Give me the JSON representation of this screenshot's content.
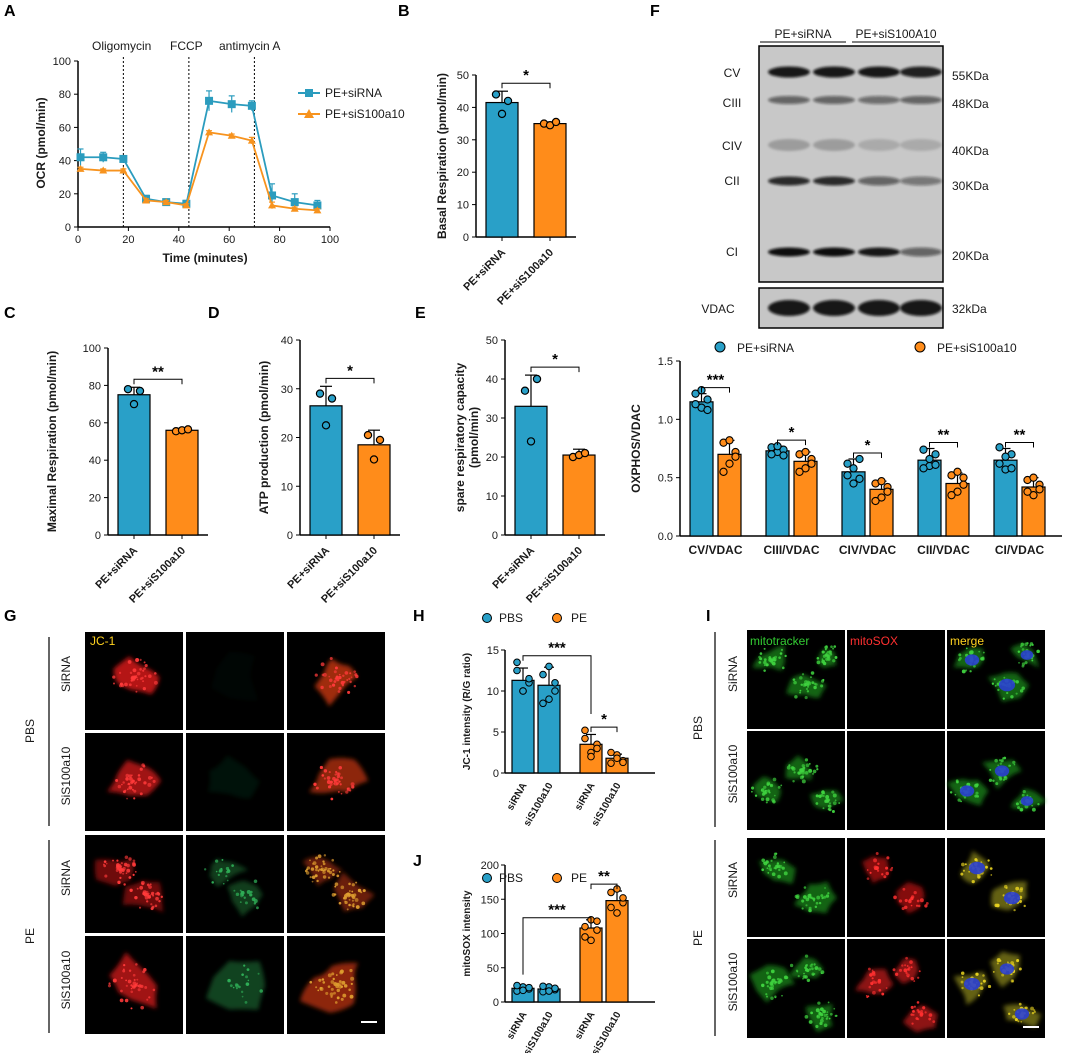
{
  "panels": {
    "A": "A",
    "B": "B",
    "C": "C",
    "D": "D",
    "E": "E",
    "F": "F",
    "G": "G",
    "H": "H",
    "I": "I",
    "J": "J"
  },
  "colors": {
    "sirna": "#2b9cbe",
    "si": "#f7931e",
    "bar_blue": "#29a0c8",
    "bar_orange": "#ff8c1a",
    "red": "#d42020",
    "green": "#2ca02c",
    "yellow": "#ffd700"
  },
  "groups": {
    "ctrl": "PE+siRNA",
    "treat": "PE+siS100a10",
    "treat_line": "PE+siS100a10"
  },
  "panel_a": {
    "inj": [
      "Oligomycin",
      "FCCP",
      "antimycin A"
    ],
    "legend": [
      "PE+siRNA",
      "PE+siS100a10"
    ]
  },
  "panel_b": {
    "ylabel": "Basal Respiration (pmol/min)",
    "sig": "*"
  },
  "panel_c": {
    "ylabel": "Maximal Respiration (pmol/min)",
    "sig": "**"
  },
  "panel_d": {
    "ylabel": "ATP production (pmol/min)",
    "sig": "*"
  },
  "panel_e": {
    "ylabel1": "spare respiratory capacity",
    "ylabel2": "(pmol/min)",
    "sig": "*"
  },
  "panel_f": {
    "groups": [
      "PE+siRNA",
      "PE+siS100A10"
    ],
    "bands": [
      "CV",
      "CIII",
      "CIV",
      "CII",
      "CI"
    ],
    "markers": [
      "55KDa",
      "48KDa",
      "40KDa",
      "30KDa",
      "20KDa"
    ],
    "vdac": "VDAC",
    "vdac_marker": "32kDa"
  },
  "panel_g": {
    "stain": "JC-1",
    "rows": [
      "SiRNA",
      "SiS100a10",
      "SiRNA",
      "SiS100a10"
    ],
    "groups": [
      "PBS",
      "PE"
    ]
  },
  "panel_h": {
    "legend": [
      "PBS",
      "PE"
    ],
    "ylabel": "JC-1 intensity (R/G ratio)",
    "sig": [
      "***",
      "*"
    ],
    "cats": [
      "siRNA",
      "siS100a10",
      "siRNA",
      "siS100a10"
    ]
  },
  "panel_i": {
    "stains": [
      "mitotracker",
      "mitoSOX",
      "merge"
    ],
    "rows": [
      "SiRNA",
      "SiS100a10",
      "SiRNA",
      "SiS100a10"
    ],
    "groups": [
      "PBS",
      "PE"
    ]
  },
  "panel_j": {
    "legend": [
      "PBS",
      "PE"
    ],
    "ylabel": "mitoSOX intensity",
    "sig": [
      "***",
      "**"
    ],
    "cats": [
      "siRNA",
      "siS100a10",
      "siRNA",
      "siS100a10"
    ]
  },
  "chart_data": [
    {
      "panel": "A",
      "type": "line",
      "xlabel": "Time (minutes)",
      "ylabel": "OCR (pmol/min)",
      "xlim": [
        0,
        100
      ],
      "ylim": [
        0,
        100
      ],
      "xticks": [
        0,
        20,
        40,
        60,
        80,
        100
      ],
      "yticks": [
        0,
        20,
        40,
        60,
        80,
        100
      ],
      "injections": [
        18,
        44,
        70
      ],
      "x": [
        1,
        10,
        18,
        27,
        35,
        43,
        52,
        61,
        69,
        77,
        86,
        95
      ],
      "series": [
        {
          "name": "PE+siRNA",
          "values": [
            42,
            42,
            41,
            17,
            15,
            14,
            76,
            74,
            73,
            19,
            15,
            13
          ],
          "err": [
            5,
            3,
            2,
            2,
            1,
            2,
            6,
            5,
            3,
            7,
            5,
            3
          ]
        },
        {
          "name": "PE+siS100a10",
          "values": [
            35,
            34,
            34,
            16,
            15,
            13,
            57,
            55,
            52,
            13,
            11,
            10
          ],
          "err": [
            1,
            1,
            1,
            1,
            1,
            1,
            1,
            1,
            2,
            2,
            1,
            1
          ]
        }
      ]
    },
    {
      "panel": "B",
      "type": "bar",
      "ylabel": "Basal Respiration (pmol/min)",
      "ylim": [
        0,
        50
      ],
      "yticks": [
        0,
        10,
        20,
        30,
        40,
        50
      ],
      "categories": [
        "PE+siRNA",
        "PE+siS100a10"
      ],
      "values": [
        41.5,
        35
      ],
      "err": [
        3.5,
        0.5
      ],
      "points": [
        [
          44,
          38,
          42
        ],
        [
          35,
          34.5,
          35.5
        ]
      ]
    },
    {
      "panel": "C",
      "type": "bar",
      "ylabel": "Maximal Respiration (pmol/min)",
      "ylim": [
        0,
        100
      ],
      "yticks": [
        0,
        20,
        40,
        60,
        80,
        100
      ],
      "categories": [
        "PE+siRNA",
        "PE+siS100a10"
      ],
      "values": [
        75,
        56
      ],
      "err": [
        4,
        1
      ],
      "points": [
        [
          78,
          70,
          77
        ],
        [
          55.5,
          56,
          56.5
        ]
      ]
    },
    {
      "panel": "D",
      "type": "bar",
      "ylabel": "ATP production (pmol/min)",
      "ylim": [
        0,
        40
      ],
      "yticks": [
        0,
        10,
        20,
        30,
        40
      ],
      "categories": [
        "PE+siRNA",
        "PE+siS100a10"
      ],
      "values": [
        26.5,
        18.5
      ],
      "err": [
        4,
        3
      ],
      "points": [
        [
          29,
          22.5,
          28
        ],
        [
          20.5,
          15.5,
          19.5
        ]
      ]
    },
    {
      "panel": "E",
      "type": "bar",
      "ylabel": "spare respiratory capacity (pmol/min)",
      "ylim": [
        0,
        50
      ],
      "yticks": [
        0,
        10,
        20,
        30,
        40,
        50
      ],
      "categories": [
        "PE+siRNA",
        "PE+siS100a10"
      ],
      "values": [
        33,
        20.5
      ],
      "err": [
        8,
        1.5
      ],
      "points": [
        [
          37,
          24,
          40
        ],
        [
          20,
          20.5,
          21
        ]
      ]
    },
    {
      "panel": "F",
      "type": "bar",
      "ylabel": "OXPHOS/VDAC",
      "ylim": [
        0,
        1.5
      ],
      "yticks": [
        0,
        0.5,
        1.0,
        1.5
      ],
      "yticklabels": [
        "0.0",
        "0.5",
        "1.0",
        "1.5"
      ],
      "legend": [
        "PE+siRNA",
        "PE+siS100a10"
      ],
      "categories": [
        "CV/VDAC",
        "CIII/VDAC",
        "CIV/VDAC",
        "CII/VDAC",
        "CI/VDAC"
      ],
      "sig": [
        "***",
        "*",
        "*",
        "**",
        "**"
      ],
      "series": [
        {
          "name": "PE+siRNA",
          "values": [
            1.15,
            0.73,
            0.55,
            0.65,
            0.65
          ],
          "err": [
            0.07,
            0.04,
            0.11,
            0.1,
            0.1
          ],
          "points": [
            [
              1.22,
              1.1,
              1.17,
              1.13,
              1.25,
              1.08
            ],
            [
              0.76,
              0.72,
              0.74,
              0.7,
              0.77,
              0.69
            ],
            [
              0.62,
              0.45,
              0.66,
              0.52,
              0.58,
              0.49
            ],
            [
              0.74,
              0.6,
              0.7,
              0.58,
              0.66,
              0.61
            ],
            [
              0.76,
              0.57,
              0.7,
              0.62,
              0.68,
              0.58
            ]
          ]
        },
        {
          "name": "PE+siS100a10",
          "values": [
            0.7,
            0.64,
            0.4,
            0.45,
            0.42
          ],
          "err": [
            0.12,
            0.08,
            0.07,
            0.09,
            0.08
          ],
          "points": [
            [
              0.8,
              0.62,
              0.72,
              0.55,
              0.82,
              0.68
            ],
            [
              0.7,
              0.58,
              0.66,
              0.55,
              0.72,
              0.62
            ],
            [
              0.45,
              0.33,
              0.42,
              0.3,
              0.47,
              0.38
            ],
            [
              0.52,
              0.38,
              0.5,
              0.35,
              0.55,
              0.44
            ],
            [
              0.48,
              0.35,
              0.44,
              0.38,
              0.5,
              0.4
            ]
          ]
        }
      ]
    },
    {
      "panel": "H",
      "type": "bar",
      "ylabel": "JC-1 intensity (R/G ratio)",
      "ylim": [
        0,
        15
      ],
      "yticks": [
        0,
        5,
        10,
        15
      ],
      "legend": [
        "PBS",
        "PE"
      ],
      "categories": [
        "siRNA",
        "siS100a10",
        "siRNA",
        "siS100a10"
      ],
      "values": [
        11.3,
        10.7,
        3.5,
        1.8
      ],
      "err": [
        1.5,
        2.2,
        1.2,
        0.5
      ],
      "colorIdx": [
        0,
        0,
        1,
        1
      ],
      "points": [
        [
          12.5,
          10,
          11,
          13.5,
          10,
          11.5
        ],
        [
          12,
          9,
          11,
          8.5,
          13,
          10
        ],
        [
          5.2,
          2.5,
          3.5,
          4.2,
          2,
          3
        ],
        [
          1.2,
          2.2,
          1.5,
          2.5,
          1.8,
          1.3
        ]
      ]
    },
    {
      "panel": "J",
      "type": "bar",
      "ylabel": "mitoSOX intensity",
      "ylim": [
        0,
        200
      ],
      "yticks": [
        0,
        50,
        100,
        150,
        200
      ],
      "legend": [
        "PBS",
        "PE"
      ],
      "categories": [
        "siRNA",
        "siS100a10",
        "siRNA",
        "siS100a10"
      ],
      "values": [
        20,
        19,
        108,
        148
      ],
      "err": [
        3,
        3,
        12,
        14
      ],
      "colorIdx": [
        0,
        0,
        1,
        1
      ],
      "points": [
        [
          16,
          22,
          19,
          24,
          17,
          21
        ],
        [
          15,
          22,
          18,
          23,
          16,
          20
        ],
        [
          95,
          120,
          105,
          110,
          90,
          118
        ],
        [
          138,
          165,
          145,
          160,
          130,
          152
        ]
      ]
    }
  ]
}
